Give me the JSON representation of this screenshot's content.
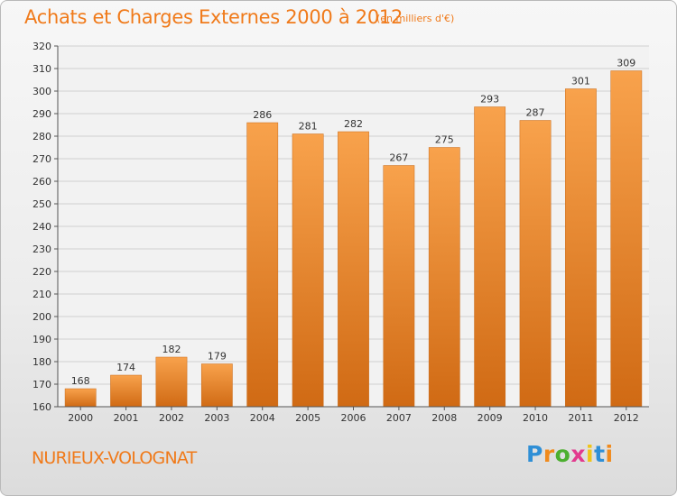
{
  "chart_data": {
    "type": "bar",
    "title": "Achats et Charges Externes 2000 à 2012",
    "subtitle": "(en milliers d'€)",
    "categories": [
      "2000",
      "2001",
      "2002",
      "2003",
      "2004",
      "2005",
      "2006",
      "2007",
      "2008",
      "2009",
      "2010",
      "2011",
      "2012"
    ],
    "values": [
      168,
      174,
      182,
      179,
      286,
      281,
      282,
      267,
      275,
      293,
      287,
      301,
      309
    ],
    "ylim": [
      160,
      320
    ],
    "yticks": [
      160,
      170,
      180,
      190,
      200,
      210,
      220,
      230,
      240,
      250,
      260,
      270,
      280,
      290,
      300,
      310,
      320
    ],
    "grid": true,
    "bar_color": "#f28c2c"
  },
  "footer": {
    "commune": "NURIEUX-VOLOGNAT",
    "logo": {
      "letters": [
        "P",
        "r",
        "o",
        "x",
        "i",
        "t",
        "i"
      ],
      "colors": [
        "#2f8fd6",
        "#f08a1c",
        "#4caf2f",
        "#e23a8e",
        "#f0c419",
        "#2f8fd6",
        "#f08a1c"
      ]
    }
  }
}
